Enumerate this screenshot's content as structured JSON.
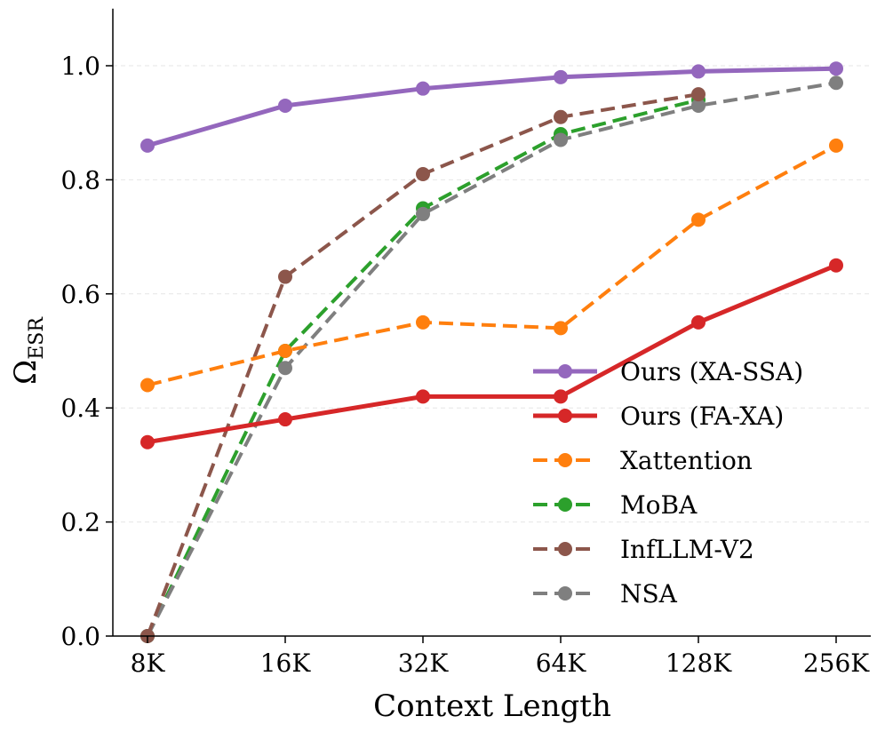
{
  "chart_data": {
    "type": "line",
    "title": "",
    "xlabel": "Context Length",
    "ylabel": "Ω_ESR",
    "ylabel_main": "Ω",
    "ylabel_sub": "ESR",
    "categories": [
      "8K",
      "16K",
      "32K",
      "64K",
      "128K",
      "256K"
    ],
    "ylim": [
      0,
      1.1
    ],
    "yticks": [
      "0.0",
      "0.2",
      "0.4",
      "0.6",
      "0.8",
      "1.0"
    ],
    "grid": "horizontal dashed",
    "legend_position": "lower-right",
    "series": [
      {
        "name": "Ours (XA-SSA)",
        "color": "#9467bd",
        "style": "solid",
        "values": [
          0.86,
          0.93,
          0.96,
          0.98,
          0.99,
          0.995
        ]
      },
      {
        "name": "Ours (FA-XA)",
        "color": "#d62728",
        "style": "solid",
        "values": [
          0.34,
          0.38,
          0.42,
          0.42,
          0.55,
          0.65
        ]
      },
      {
        "name": "Xattention",
        "color": "#ff7f0e",
        "style": "dashed",
        "values": [
          0.44,
          0.5,
          0.55,
          0.54,
          0.73,
          0.86
        ]
      },
      {
        "name": "MoBA",
        "color": "#2ca02c",
        "style": "dashed",
        "values": [
          0.0,
          0.5,
          0.75,
          0.88,
          0.94,
          null
        ]
      },
      {
        "name": "InfLLM-V2",
        "color": "#8c564b",
        "style": "dashed",
        "values": [
          0.0,
          0.63,
          0.81,
          0.91,
          0.95,
          null
        ]
      },
      {
        "name": "NSA",
        "color": "#7f7f7f",
        "style": "dashed",
        "values": [
          0.0,
          0.47,
          0.74,
          0.87,
          0.93,
          0.97
        ]
      }
    ]
  }
}
